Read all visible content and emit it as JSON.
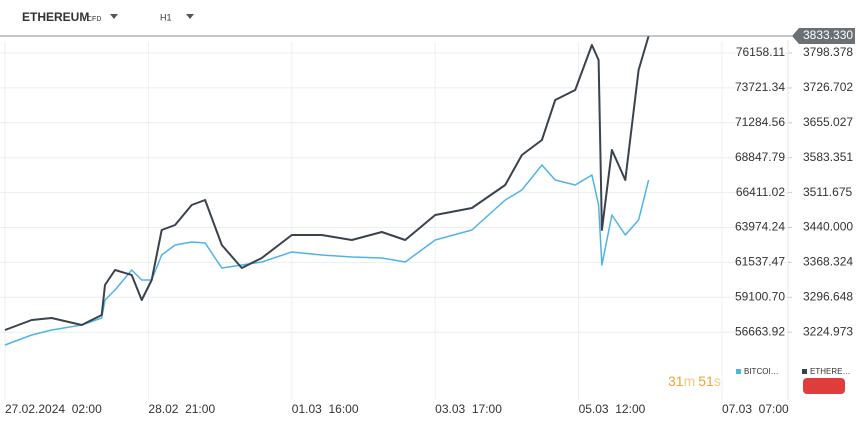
{
  "header": {
    "instrument": "ETHEREUM",
    "instrument_type": "CFD",
    "timeframe": "H1"
  },
  "timer": [
    "31",
    "m",
    "51",
    "s"
  ],
  "chart_data": {
    "type": "line",
    "x": [
      0,
      8,
      14,
      23,
      29,
      30,
      33,
      38,
      41,
      44,
      47,
      51,
      56,
      60,
      65,
      71,
      77,
      86,
      95,
      104,
      113,
      120,
      129,
      140,
      150,
      155,
      161,
      165,
      171,
      176,
      178,
      179,
      182,
      186,
      190,
      193
    ],
    "xlim": [
      -1.5,
      234.8
    ],
    "xticks": [
      {
        "value": 0,
        "label": "27.02.2024  02:00"
      },
      {
        "value": 43,
        "label": "28.02  21:00"
      },
      {
        "value": 86,
        "label": "01.03  16:00"
      },
      {
        "value": 129,
        "label": "03.03  17:00"
      },
      {
        "value": 172,
        "label": "05.03  12:00"
      },
      {
        "value": 215,
        "label": "07.03  07:00"
      }
    ],
    "ylim": [
      51930,
      79858.7
    ],
    "yticks": [
      56663.92,
      {
        "value": 59100.7,
        "label": "59100.70"
      },
      61537.47,
      63974.24,
      66411.02,
      68847.79,
      71284.56,
      73721.34,
      76158.11
    ],
    "y2lim": [
      3085.7,
      3907.2
    ],
    "y2ticks": [
      3224.973,
      3296.648,
      3368.324,
      {
        "value": 3440,
        "label": "3440.000"
      },
      3511.675,
      3583.351,
      3655.027,
      3726.702,
      3798.378
    ],
    "grid": true,
    "last_price": {
      "value": 3833.33,
      "label": "3833.330"
    },
    "series": [
      {
        "name": "BITCOI…",
        "color": "#4fb3e8",
        "axis": "y",
        "values": [
          55771,
          56469,
          56818,
          57168,
          57656,
          58913,
          59611,
          61007,
          60309,
          60309,
          62054,
          62753,
          62962,
          62892,
          61147,
          61357,
          61566,
          62264,
          62054,
          61915,
          61845,
          61566,
          63102,
          63800,
          65895,
          66593,
          68338,
          67291,
          66942,
          67640,
          65545,
          61357,
          64848,
          63452,
          64499,
          67291
        ]
      },
      {
        "name": "ETHERE…",
        "color": "#3a434d",
        "axis": "y2",
        "values": [
          3229.4,
          3250.0,
          3254.1,
          3239.7,
          3260.3,
          3321.9,
          3352.7,
          3342.4,
          3291.1,
          3332.1,
          3434.8,
          3445.1,
          3486.2,
          3496.4,
          3404.0,
          3356.8,
          3377.3,
          3424.6,
          3424.6,
          3414.3,
          3430.7,
          3414.3,
          3465.6,
          3480.0,
          3527.2,
          3588.9,
          3619.7,
          3701.8,
          3722.4,
          3814.8,
          3784.0,
          3434.8,
          3599.1,
          3537.5,
          3763.4,
          3833.33
        ]
      }
    ]
  }
}
